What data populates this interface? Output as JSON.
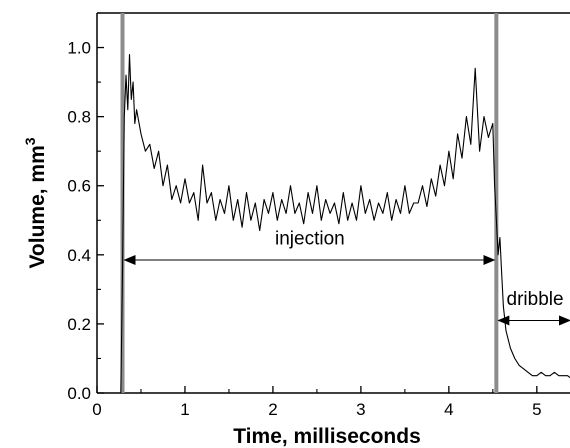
{
  "chart_data": {
    "type": "line",
    "xlabel": "Time, milliseconds",
    "ylabel": "Volume, mm",
    "ylabel_sup": "3",
    "xlim": [
      0,
      5.4
    ],
    "ylim": [
      0,
      1.1
    ],
    "xticks": [
      0,
      1,
      2,
      3,
      4,
      5
    ],
    "xtick_labels": [
      "0",
      "1",
      "2",
      "3",
      "4",
      "5"
    ],
    "yticks": [
      0.0,
      0.2,
      0.4,
      0.6,
      0.8,
      1.0
    ],
    "ytick_labels": [
      "0.0",
      "0.2",
      "0.4",
      "0.6",
      "0.8",
      "1.0"
    ],
    "grid": false,
    "series": [
      {
        "x": [
          0.27,
          0.29,
          0.31,
          0.33,
          0.35,
          0.37,
          0.39,
          0.41,
          0.43,
          0.45,
          0.5,
          0.55,
          0.6,
          0.65,
          0.7,
          0.75,
          0.8,
          0.85,
          0.9,
          0.95,
          1.0,
          1.05,
          1.1,
          1.15,
          1.2,
          1.25,
          1.3,
          1.35,
          1.4,
          1.45,
          1.5,
          1.55,
          1.6,
          1.65,
          1.7,
          1.75,
          1.8,
          1.85,
          1.9,
          1.95,
          2.0,
          2.05,
          2.1,
          2.15,
          2.2,
          2.25,
          2.3,
          2.35,
          2.4,
          2.45,
          2.5,
          2.55,
          2.6,
          2.65,
          2.7,
          2.75,
          2.8,
          2.85,
          2.9,
          2.95,
          3.0,
          3.05,
          3.1,
          3.15,
          3.2,
          3.25,
          3.3,
          3.35,
          3.4,
          3.45,
          3.5,
          3.55,
          3.6,
          3.65,
          3.7,
          3.75,
          3.8,
          3.85,
          3.9,
          3.95,
          4.0,
          4.05,
          4.1,
          4.15,
          4.2,
          4.25,
          4.3,
          4.35,
          4.4,
          4.45,
          4.5,
          4.52,
          4.54,
          4.56,
          4.58,
          4.6,
          4.62,
          4.65,
          4.7,
          4.75,
          4.8,
          4.85,
          4.9,
          4.95,
          5.0,
          5.05,
          5.1,
          5.15,
          5.2,
          5.25,
          5.3,
          5.35,
          5.4
        ],
        "y": [
          0.0,
          0.35,
          0.8,
          0.92,
          0.82,
          0.98,
          0.85,
          0.9,
          0.78,
          0.82,
          0.75,
          0.7,
          0.72,
          0.65,
          0.7,
          0.6,
          0.66,
          0.56,
          0.6,
          0.55,
          0.62,
          0.55,
          0.58,
          0.5,
          0.66,
          0.55,
          0.58,
          0.5,
          0.56,
          0.52,
          0.6,
          0.5,
          0.56,
          0.48,
          0.58,
          0.5,
          0.55,
          0.47,
          0.56,
          0.52,
          0.58,
          0.5,
          0.56,
          0.52,
          0.6,
          0.52,
          0.55,
          0.49,
          0.58,
          0.52,
          0.6,
          0.5,
          0.56,
          0.52,
          0.55,
          0.49,
          0.58,
          0.5,
          0.55,
          0.5,
          0.6,
          0.52,
          0.56,
          0.5,
          0.55,
          0.52,
          0.58,
          0.5,
          0.56,
          0.52,
          0.6,
          0.52,
          0.55,
          0.55,
          0.6,
          0.54,
          0.62,
          0.57,
          0.66,
          0.6,
          0.7,
          0.62,
          0.75,
          0.68,
          0.8,
          0.72,
          0.94,
          0.7,
          0.8,
          0.74,
          0.78,
          0.6,
          0.5,
          0.4,
          0.45,
          0.35,
          0.25,
          0.18,
          0.13,
          0.1,
          0.08,
          0.07,
          0.06,
          0.05,
          0.05,
          0.06,
          0.05,
          0.05,
          0.06,
          0.05,
          0.05,
          0.05,
          0.04
        ]
      }
    ],
    "vertical_markers": [
      0.29,
      4.54
    ],
    "annotations": [
      {
        "text": "injection",
        "x_from": 0.29,
        "x_to": 4.54,
        "y": 0.385,
        "text_x": 2.42,
        "text_y": 0.43
      },
      {
        "text": "dribble",
        "x_from": 4.54,
        "x_to": 5.4,
        "y": 0.21,
        "text_x": 4.98,
        "text_y": 0.255
      }
    ]
  }
}
